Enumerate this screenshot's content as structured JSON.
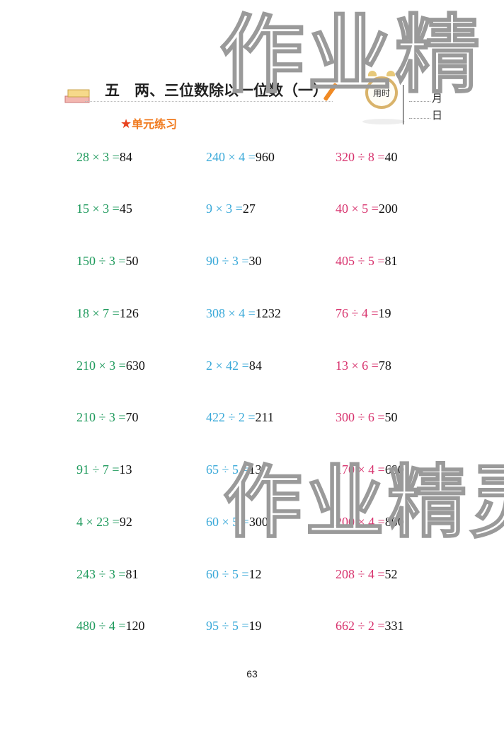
{
  "watermark": "作业精灵",
  "header": {
    "unit_title": "五　两、三位数除以一位数（一）",
    "clock_label": "用时",
    "month_label": "月",
    "day_label": "日",
    "section": "单元练习"
  },
  "colors": {
    "column1": "#1e9a5c",
    "column2": "#3aa9d9",
    "column3": "#d8336e",
    "answer": "#111111"
  },
  "rows": [
    [
      {
        "q": "28 × 3 =",
        "a": "84"
      },
      {
        "q": "240 × 4 =",
        "a": "960"
      },
      {
        "q": "320 ÷ 8 =",
        "a": "40"
      }
    ],
    [
      {
        "q": "15 × 3 =",
        "a": "45"
      },
      {
        "q": "9 × 3 =",
        "a": "27"
      },
      {
        "q": "40 × 5 =",
        "a": "200"
      }
    ],
    [
      {
        "q": "150 ÷ 3 =",
        "a": "50"
      },
      {
        "q": "90 ÷ 3 =",
        "a": "30"
      },
      {
        "q": "405 ÷ 5 =",
        "a": "81"
      }
    ],
    [
      {
        "q": "18 × 7 =",
        "a": "126"
      },
      {
        "q": "308 × 4 =",
        "a": "1232"
      },
      {
        "q": "76 ÷ 4 =",
        "a": "19"
      }
    ],
    [
      {
        "q": "210 × 3 =",
        "a": "630"
      },
      {
        "q": "2 × 42 =",
        "a": "84"
      },
      {
        "q": "13 × 6 =",
        "a": "78"
      }
    ],
    [
      {
        "q": "210 ÷ 3 =",
        "a": "70"
      },
      {
        "q": "422 ÷ 2 =",
        "a": "211"
      },
      {
        "q": "300 ÷ 6 =",
        "a": "50"
      }
    ],
    [
      {
        "q": "91 ÷ 7 =",
        "a": "13"
      },
      {
        "q": "65 ÷ 5 =",
        "a": "13"
      },
      {
        "q": "170 × 4 =",
        "a": "680"
      }
    ],
    [
      {
        "q": "4 × 23 =",
        "a": "92"
      },
      {
        "q": "60 × 5 =",
        "a": "300"
      },
      {
        "q": "200 × 4 =",
        "a": "800"
      }
    ],
    [
      {
        "q": "243 ÷ 3 =",
        "a": "81"
      },
      {
        "q": "60 ÷ 5 =",
        "a": "12"
      },
      {
        "q": "208 ÷ 4 =",
        "a": "52"
      }
    ],
    [
      {
        "q": "480 ÷ 4 =",
        "a": "120"
      },
      {
        "q": "95 ÷ 5 =",
        "a": "19"
      },
      {
        "q": "662 ÷ 2 =",
        "a": "331"
      }
    ]
  ],
  "page_number": "63"
}
